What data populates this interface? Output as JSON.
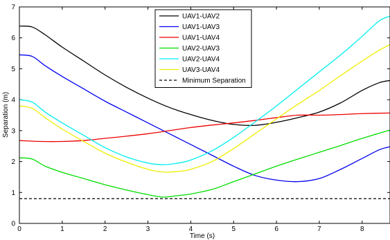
{
  "chart_data": {
    "type": "line",
    "title": "",
    "xlabel": "Time (s)",
    "ylabel": "Separation (m)",
    "xlim": [
      0,
      8.65
    ],
    "ylim": [
      0,
      7
    ],
    "xticks": [
      0,
      1,
      2,
      3,
      4,
      5,
      6,
      7,
      8
    ],
    "yticks": [
      0,
      1,
      2,
      3,
      4,
      5,
      6,
      7
    ],
    "grid": false,
    "legend_position": "top-center",
    "series": [
      {
        "name": "UAV1-UAV2",
        "color": "#000000",
        "dash": "solid",
        "points": [
          [
            0,
            6.38
          ],
          [
            0.3,
            6.35
          ],
          [
            0.6,
            6.1
          ],
          [
            1.0,
            5.7
          ],
          [
            1.5,
            5.25
          ],
          [
            2.0,
            4.8
          ],
          [
            2.5,
            4.4
          ],
          [
            3.0,
            4.05
          ],
          [
            3.5,
            3.75
          ],
          [
            4.0,
            3.52
          ],
          [
            4.5,
            3.33
          ],
          [
            5.0,
            3.2
          ],
          [
            5.5,
            3.17
          ],
          [
            6.0,
            3.27
          ],
          [
            6.5,
            3.42
          ],
          [
            7.0,
            3.6
          ],
          [
            7.5,
            3.9
          ],
          [
            8.0,
            4.3
          ],
          [
            8.4,
            4.55
          ],
          [
            8.65,
            4.62
          ]
        ]
      },
      {
        "name": "UAV1-UAV3",
        "color": "#0000ee",
        "dash": "solid",
        "points": [
          [
            0,
            5.45
          ],
          [
            0.3,
            5.4
          ],
          [
            0.6,
            5.1
          ],
          [
            1.0,
            4.75
          ],
          [
            1.5,
            4.35
          ],
          [
            2.0,
            3.95
          ],
          [
            2.5,
            3.6
          ],
          [
            3.0,
            3.25
          ],
          [
            3.5,
            2.9
          ],
          [
            4.0,
            2.55
          ],
          [
            4.5,
            2.2
          ],
          [
            5.0,
            1.85
          ],
          [
            5.5,
            1.55
          ],
          [
            6.0,
            1.4
          ],
          [
            6.5,
            1.35
          ],
          [
            7.0,
            1.45
          ],
          [
            7.5,
            1.75
          ],
          [
            8.0,
            2.1
          ],
          [
            8.4,
            2.38
          ],
          [
            8.65,
            2.48
          ]
        ]
      },
      {
        "name": "UAV1-UAV4",
        "color": "#ee0000",
        "dash": "solid",
        "points": [
          [
            0,
            2.68
          ],
          [
            0.5,
            2.65
          ],
          [
            1.0,
            2.65
          ],
          [
            1.5,
            2.68
          ],
          [
            2.0,
            2.75
          ],
          [
            2.5,
            2.82
          ],
          [
            3.0,
            2.9
          ],
          [
            3.5,
            3.0
          ],
          [
            4.0,
            3.1
          ],
          [
            4.5,
            3.18
          ],
          [
            5.0,
            3.25
          ],
          [
            5.5,
            3.33
          ],
          [
            6.0,
            3.42
          ],
          [
            6.5,
            3.5
          ],
          [
            7.0,
            3.5
          ],
          [
            7.5,
            3.52
          ],
          [
            8.0,
            3.55
          ],
          [
            8.65,
            3.57
          ]
        ]
      },
      {
        "name": "UAV2-UAV3",
        "color": "#00dd00",
        "dash": "solid",
        "points": [
          [
            0,
            2.12
          ],
          [
            0.3,
            2.08
          ],
          [
            0.6,
            1.85
          ],
          [
            1.0,
            1.65
          ],
          [
            1.5,
            1.45
          ],
          [
            2.0,
            1.25
          ],
          [
            2.5,
            1.08
          ],
          [
            3.0,
            0.93
          ],
          [
            3.35,
            0.85
          ],
          [
            3.7,
            0.9
          ],
          [
            4.0,
            0.95
          ],
          [
            4.5,
            1.1
          ],
          [
            5.0,
            1.35
          ],
          [
            5.5,
            1.6
          ],
          [
            6.0,
            1.85
          ],
          [
            6.5,
            2.08
          ],
          [
            7.0,
            2.3
          ],
          [
            7.5,
            2.52
          ],
          [
            8.0,
            2.75
          ],
          [
            8.65,
            3.02
          ]
        ]
      },
      {
        "name": "UAV2-UAV4",
        "color": "#00eeee",
        "dash": "solid",
        "points": [
          [
            0,
            4.0
          ],
          [
            0.3,
            3.92
          ],
          [
            0.6,
            3.6
          ],
          [
            1.0,
            3.25
          ],
          [
            1.5,
            2.85
          ],
          [
            2.0,
            2.45
          ],
          [
            2.5,
            2.15
          ],
          [
            3.0,
            1.95
          ],
          [
            3.35,
            1.9
          ],
          [
            3.7,
            1.95
          ],
          [
            4.0,
            2.05
          ],
          [
            4.5,
            2.35
          ],
          [
            5.0,
            2.78
          ],
          [
            5.5,
            3.28
          ],
          [
            6.0,
            3.8
          ],
          [
            6.5,
            4.35
          ],
          [
            7.0,
            4.9
          ],
          [
            7.5,
            5.45
          ],
          [
            8.0,
            6.05
          ],
          [
            8.4,
            6.55
          ],
          [
            8.65,
            6.7
          ]
        ]
      },
      {
        "name": "UAV3-UAV4",
        "color": "#eeee00",
        "dash": "solid",
        "points": [
          [
            0,
            3.8
          ],
          [
            0.3,
            3.72
          ],
          [
            0.6,
            3.42
          ],
          [
            1.0,
            3.05
          ],
          [
            1.5,
            2.65
          ],
          [
            2.0,
            2.27
          ],
          [
            2.5,
            1.98
          ],
          [
            3.0,
            1.75
          ],
          [
            3.35,
            1.66
          ],
          [
            3.7,
            1.68
          ],
          [
            4.0,
            1.75
          ],
          [
            4.5,
            2.0
          ],
          [
            5.0,
            2.42
          ],
          [
            5.5,
            2.9
          ],
          [
            6.0,
            3.38
          ],
          [
            6.5,
            3.85
          ],
          [
            7.0,
            4.3
          ],
          [
            7.5,
            4.78
          ],
          [
            8.0,
            5.25
          ],
          [
            8.4,
            5.6
          ],
          [
            8.65,
            5.78
          ]
        ]
      },
      {
        "name": "Minimum Separation",
        "color": "#000000",
        "dash": "dashed",
        "points": [
          [
            0,
            0.8
          ],
          [
            8.65,
            0.8
          ]
        ]
      }
    ]
  }
}
